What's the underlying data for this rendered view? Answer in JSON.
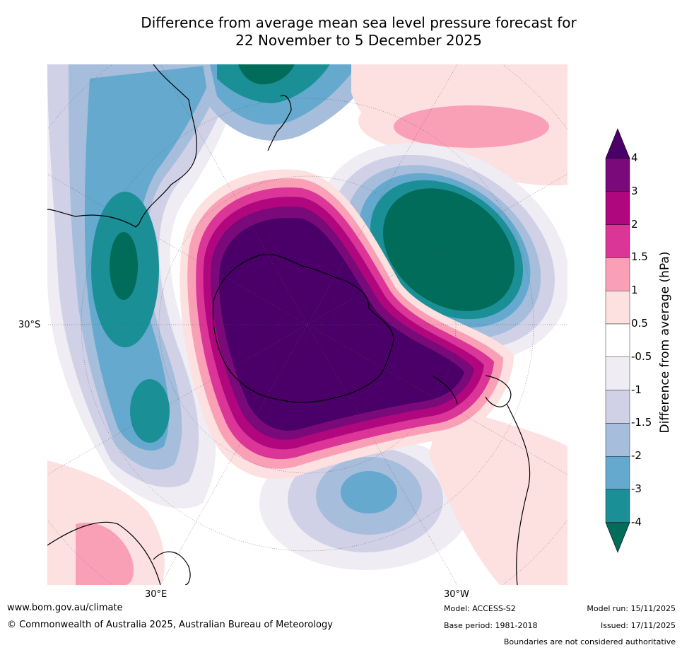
{
  "title": {
    "line1": "Difference from average mean sea level pressure forecast for",
    "line2": "22 November to 5 December 2025"
  },
  "axis_labels": {
    "lat": "30°S",
    "lon_east": "30°E",
    "lon_west": "30°W"
  },
  "colorbar": {
    "title": "Difference from average (hPa)",
    "ticks": [
      "4",
      "3",
      "2",
      "1.5",
      "1",
      "0.5",
      "-0.5",
      "-1",
      "-1.5",
      "-2",
      "-3",
      "-4"
    ],
    "colors": [
      "#4a0068",
      "#7a0a7a",
      "#b0067e",
      "#dc3598",
      "#f9a0b7",
      "#fde0e0",
      "#ffffff",
      "#efecf3",
      "#d0d1e6",
      "#a6bddb",
      "#66a9cf",
      "#1a9096",
      "#016c59"
    ]
  },
  "footer": {
    "url": "www.bom.gov.au/climate",
    "copyright": "© Commonwealth of Australia 2025, Australian Bureau of Meteorology",
    "model": "Model: ACCESS-S2",
    "base_period": "Base period: 1981-2018",
    "model_run": "Model run: 15/11/2025",
    "issued": "Issued: 17/11/2025",
    "disclaimer": "Boundaries are not considered authoritative"
  }
}
